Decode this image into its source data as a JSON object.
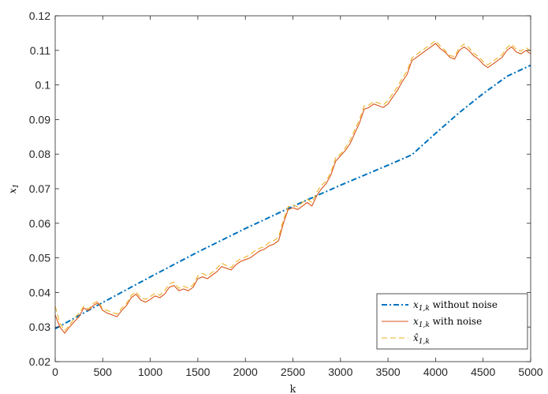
{
  "chart_data": {
    "type": "line",
    "xlabel": "k",
    "ylabel": "x",
    "ylabel_sub": "1",
    "xlim": [
      0,
      5000
    ],
    "ylim": [
      0.02,
      0.12
    ],
    "x_ticks": [
      0,
      500,
      1000,
      1500,
      2000,
      2500,
      3000,
      3500,
      4000,
      4500,
      5000
    ],
    "x_tick_labels": [
      "0",
      "500",
      "1000",
      "1500",
      "2000",
      "2500",
      "3000",
      "3500",
      "4000",
      "4500",
      "5000"
    ],
    "y_ticks": [
      0.02,
      0.03,
      0.04,
      0.05,
      0.06,
      0.07,
      0.08,
      0.09,
      0.1,
      0.11,
      0.12
    ],
    "y_tick_labels": [
      "0.02",
      "0.03",
      "0.04",
      "0.05",
      "0.06",
      "0.07",
      "0.08",
      "0.09",
      "0.1",
      "0.11",
      "0.12"
    ],
    "grid": false,
    "legend_position": "bottom-right",
    "series": [
      {
        "name": "x1,k without noise",
        "label_main": "x",
        "label_sub": "1,k",
        "label_text": "without noise",
        "color": "#0072BD",
        "style": "dash-dot",
        "x": [
          0,
          250,
          500,
          750,
          1000,
          1250,
          1500,
          1750,
          2000,
          2250,
          2500,
          2750,
          3000,
          3250,
          3500,
          3750,
          4000,
          4250,
          4500,
          4750,
          5000
        ],
        "y": [
          0.0295,
          0.0333,
          0.0371,
          0.0408,
          0.0445,
          0.0481,
          0.0517,
          0.0551,
          0.0585,
          0.0617,
          0.0649,
          0.068,
          0.071,
          0.0739,
          0.0768,
          0.0798,
          0.086,
          0.092,
          0.0975,
          0.1025,
          0.1057
        ]
      },
      {
        "name": "x1,k with noise",
        "label_main": "x",
        "label_sub": "1,k",
        "label_text": "with noise",
        "color": "#D95319",
        "style": "solid",
        "x": [
          0,
          50,
          100,
          150,
          200,
          250,
          300,
          350,
          400,
          450,
          500,
          550,
          600,
          650,
          700,
          750,
          800,
          850,
          900,
          950,
          1000,
          1050,
          1100,
          1150,
          1200,
          1250,
          1300,
          1350,
          1400,
          1450,
          1500,
          1550,
          1600,
          1650,
          1700,
          1750,
          1800,
          1850,
          1900,
          1950,
          2000,
          2050,
          2100,
          2150,
          2200,
          2250,
          2300,
          2350,
          2400,
          2450,
          2500,
          2550,
          2600,
          2650,
          2700,
          2750,
          2800,
          2850,
          2900,
          2950,
          3000,
          3050,
          3100,
          3150,
          3200,
          3250,
          3300,
          3350,
          3400,
          3450,
          3500,
          3550,
          3600,
          3650,
          3700,
          3750,
          3800,
          3850,
          3900,
          3950,
          4000,
          4050,
          4100,
          4150,
          4200,
          4250,
          4300,
          4350,
          4400,
          4450,
          4500,
          4550,
          4600,
          4650,
          4700,
          4750,
          4800,
          4850,
          4900,
          4950,
          5000
        ],
        "y": [
          0.0335,
          0.03,
          0.0282,
          0.03,
          0.0315,
          0.033,
          0.0355,
          0.0348,
          0.0362,
          0.037,
          0.0348,
          0.034,
          0.0335,
          0.033,
          0.0348,
          0.0362,
          0.0385,
          0.0395,
          0.0378,
          0.0372,
          0.038,
          0.039,
          0.0385,
          0.0395,
          0.0415,
          0.042,
          0.0405,
          0.041,
          0.0405,
          0.0415,
          0.044,
          0.0445,
          0.044,
          0.045,
          0.046,
          0.0475,
          0.047,
          0.0465,
          0.048,
          0.049,
          0.0495,
          0.05,
          0.051,
          0.052,
          0.0525,
          0.0535,
          0.054,
          0.055,
          0.06,
          0.064,
          0.0645,
          0.064,
          0.065,
          0.066,
          0.065,
          0.068,
          0.07,
          0.0715,
          0.074,
          0.078,
          0.0795,
          0.081,
          0.083,
          0.086,
          0.089,
          0.093,
          0.0935,
          0.0945,
          0.094,
          0.0935,
          0.0945,
          0.0965,
          0.0985,
          0.101,
          0.103,
          0.107,
          0.108,
          0.109,
          0.11,
          0.111,
          0.112,
          0.1105,
          0.1095,
          0.108,
          0.1075,
          0.11,
          0.111,
          0.11,
          0.1085,
          0.1075,
          0.106,
          0.105,
          0.106,
          0.107,
          0.108,
          0.11,
          0.111,
          0.1095,
          0.109,
          0.11,
          0.109
        ]
      },
      {
        "name": "x̂1,k",
        "label_main": "x̂",
        "label_sub": "1,k",
        "label_text": "",
        "color": "#EDB120",
        "style": "dashed",
        "x": [
          0,
          50,
          100,
          150,
          200,
          250,
          300,
          350,
          400,
          450,
          500,
          550,
          600,
          650,
          700,
          750,
          800,
          850,
          900,
          950,
          1000,
          1050,
          1100,
          1150,
          1200,
          1250,
          1300,
          1350,
          1400,
          1450,
          1500,
          1550,
          1600,
          1650,
          1700,
          1750,
          1800,
          1850,
          1900,
          1950,
          2000,
          2050,
          2100,
          2150,
          2200,
          2250,
          2300,
          2350,
          2400,
          2450,
          2500,
          2550,
          2600,
          2650,
          2700,
          2750,
          2800,
          2850,
          2900,
          2950,
          3000,
          3050,
          3100,
          3150,
          3200,
          3250,
          3300,
          3350,
          3400,
          3450,
          3500,
          3550,
          3600,
          3650,
          3700,
          3750,
          3800,
          3850,
          3900,
          3950,
          4000,
          4050,
          4100,
          4150,
          4200,
          4250,
          4300,
          4350,
          4400,
          4450,
          4500,
          4550,
          4600,
          4650,
          4700,
          4750,
          4800,
          4850,
          4900,
          4950,
          5000
        ],
        "y": [
          0.036,
          0.031,
          0.029,
          0.0305,
          0.0325,
          0.034,
          0.036,
          0.0352,
          0.0368,
          0.0375,
          0.0352,
          0.0348,
          0.0342,
          0.0338,
          0.0355,
          0.0368,
          0.0392,
          0.0402,
          0.0385,
          0.038,
          0.0388,
          0.0398,
          0.0392,
          0.0405,
          0.0425,
          0.043,
          0.0412,
          0.0418,
          0.0412,
          0.0422,
          0.0448,
          0.0455,
          0.0448,
          0.0458,
          0.047,
          0.0485,
          0.0478,
          0.0472,
          0.0488,
          0.0498,
          0.0502,
          0.051,
          0.052,
          0.0528,
          0.0532,
          0.0545,
          0.055,
          0.056,
          0.061,
          0.0648,
          0.0652,
          0.0648,
          0.066,
          0.067,
          0.066,
          0.069,
          0.071,
          0.0722,
          0.0748,
          0.079,
          0.08,
          0.0818,
          0.084,
          0.087,
          0.09,
          0.094,
          0.0942,
          0.0952,
          0.0948,
          0.0942,
          0.0955,
          0.0975,
          0.0995,
          0.102,
          0.104,
          0.1078,
          0.1088,
          0.1098,
          0.1108,
          0.1118,
          0.1128,
          0.1112,
          0.11,
          0.1085,
          0.1082,
          0.1108,
          0.1118,
          0.1108,
          0.1092,
          0.1082,
          0.1068,
          0.1058,
          0.1068,
          0.1078,
          0.1088,
          0.1108,
          0.1118,
          0.1102,
          0.1098,
          0.1108,
          0.1098
        ]
      }
    ]
  }
}
